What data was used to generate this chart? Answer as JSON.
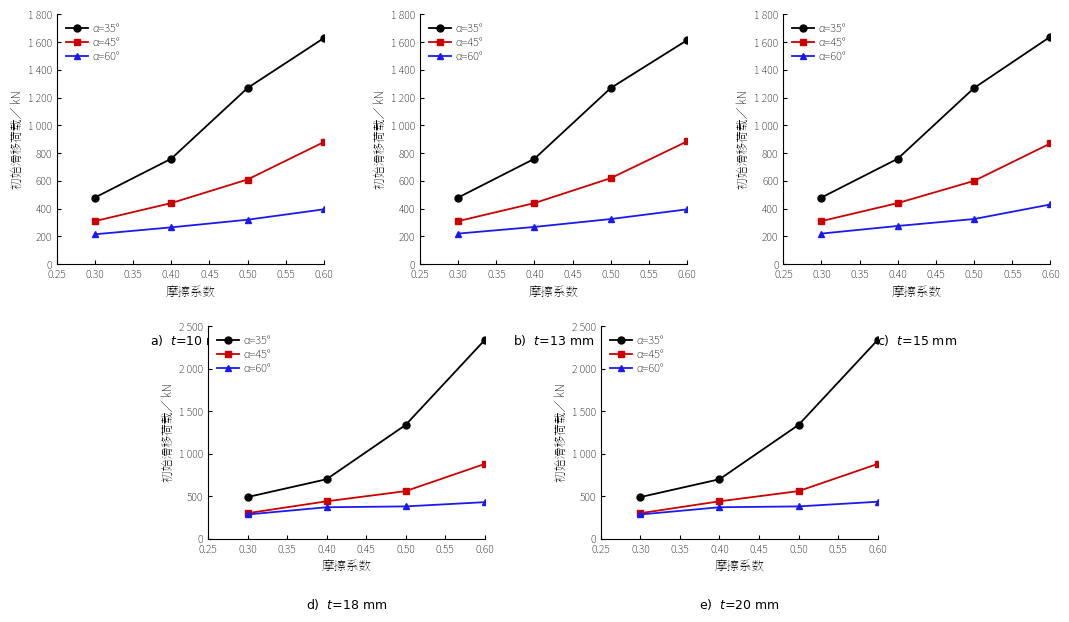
{
  "x": [
    0.3,
    0.4,
    0.5,
    0.6
  ],
  "subplots": [
    {
      "label": "a)",
      "t_label": "t=10 mm",
      "ylim": [
        0,
        1800
      ],
      "yticks": [
        0,
        200,
        400,
        600,
        800,
        1000,
        1200,
        1400,
        1600,
        1800
      ],
      "series": [
        {
          "label": "α=35°",
          "color": "#000000",
          "marker": "o",
          "values": [
            480,
            760,
            1270,
            1630
          ]
        },
        {
          "label": "α=45°",
          "color": "#cc0000",
          "marker": "s",
          "values": [
            310,
            440,
            610,
            880
          ]
        },
        {
          "label": "α=60°",
          "color": "#1a1aee",
          "marker": "^",
          "values": [
            215,
            265,
            320,
            395
          ]
        }
      ]
    },
    {
      "label": "b)",
      "t_label": "t=13 mm",
      "ylim": [
        0,
        1800
      ],
      "yticks": [
        0,
        200,
        400,
        600,
        800,
        1000,
        1200,
        1400,
        1600,
        1800
      ],
      "series": [
        {
          "label": "α=35°",
          "color": "#000000",
          "marker": "o",
          "values": [
            480,
            760,
            1270,
            1615
          ]
        },
        {
          "label": "α=45°",
          "color": "#cc0000",
          "marker": "s",
          "values": [
            310,
            440,
            620,
            885
          ]
        },
        {
          "label": "α=60°",
          "color": "#1a1aee",
          "marker": "^",
          "values": [
            220,
            268,
            325,
            395
          ]
        }
      ]
    },
    {
      "label": "c)",
      "t_label": "t=15 mm",
      "ylim": [
        0,
        1800
      ],
      "yticks": [
        0,
        200,
        400,
        600,
        800,
        1000,
        1200,
        1400,
        1600,
        1800
      ],
      "series": [
        {
          "label": "α=35°",
          "color": "#000000",
          "marker": "o",
          "values": [
            480,
            760,
            1270,
            1640
          ]
        },
        {
          "label": "α=45°",
          "color": "#cc0000",
          "marker": "s",
          "values": [
            310,
            440,
            600,
            870
          ]
        },
        {
          "label": "α=60°",
          "color": "#1a1aee",
          "marker": "^",
          "values": [
            220,
            275,
            325,
            430
          ]
        }
      ]
    },
    {
      "label": "d)",
      "t_label": "t=18 mm",
      "ylim": [
        0,
        2500
      ],
      "yticks": [
        0,
        500,
        1000,
        1500,
        2000,
        2500
      ],
      "series": [
        {
          "label": "α=35°",
          "color": "#000000",
          "marker": "o",
          "values": [
            490,
            700,
            1340,
            2340
          ]
        },
        {
          "label": "α=45°",
          "color": "#cc0000",
          "marker": "s",
          "values": [
            300,
            440,
            560,
            880
          ]
        },
        {
          "label": "α=60°",
          "color": "#1a1aee",
          "marker": "^",
          "values": [
            285,
            370,
            380,
            430
          ]
        }
      ]
    },
    {
      "label": "e)",
      "t_label": "t=20 mm",
      "ylim": [
        0,
        2500
      ],
      "yticks": [
        0,
        500,
        1000,
        1500,
        2000,
        2500
      ],
      "series": [
        {
          "label": "α=35°",
          "color": "#000000",
          "marker": "o",
          "values": [
            490,
            700,
            1340,
            2340
          ]
        },
        {
          "label": "α=45°",
          "color": "#cc0000",
          "marker": "s",
          "values": [
            300,
            440,
            560,
            880
          ]
        },
        {
          "label": "α=60°",
          "color": "#1a1aee",
          "marker": "^",
          "values": [
            285,
            370,
            380,
            435
          ]
        }
      ]
    }
  ],
  "xlabel": "摩擦系数",
  "ylabel": "初始滑移荷载／ kN",
  "xlim": [
    0.25,
    0.6
  ],
  "xticks": [
    0.25,
    0.3,
    0.35,
    0.4,
    0.45,
    0.5,
    0.55,
    0.6
  ],
  "xtick_labels": [
    "0.25",
    "0.30",
    "0.35",
    "0.40",
    "0.45",
    "0.50",
    "0.55",
    "0.60"
  ]
}
